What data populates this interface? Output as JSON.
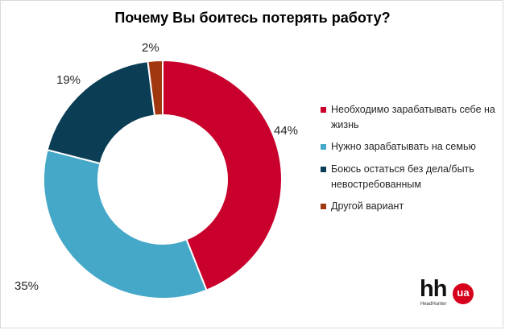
{
  "chart_data": {
    "type": "pie",
    "title": "Почему Вы боитесь потерять работу?",
    "slices": [
      {
        "label": "Необходимо зарабатывать себе на жизнь",
        "value": 44,
        "value_label": "44%",
        "color": "#c9002b"
      },
      {
        "label": "Нужно зарабатывать на семью",
        "value": 35,
        "value_label": "35%",
        "color": "#46a8c9"
      },
      {
        "label": "Боюсь остаться без дела/быть невостребованным",
        "value": 19,
        "value_label": "19%",
        "color": "#0b3d55"
      },
      {
        "label": "Другой вариант",
        "value": 2,
        "value_label": "2%",
        "color": "#a0370f"
      }
    ],
    "donut": true,
    "legend_position": "right"
  },
  "logo": {
    "mark": "hh",
    "badge": "ua",
    "subtitle": "HeadHunter"
  }
}
